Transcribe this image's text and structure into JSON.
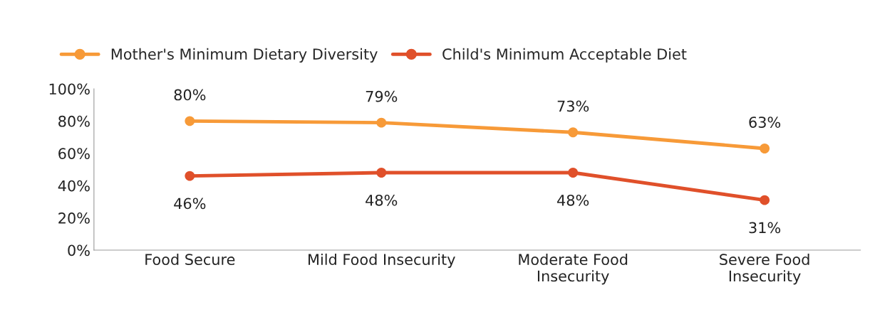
{
  "chart_data": {
    "type": "line",
    "categories": [
      "Food Secure",
      "Mild Food Insecurity",
      "Moderate Food Insecurity",
      "Severe Food Insecurity"
    ],
    "series": [
      {
        "name": "Mother's Minimum Dietary Diversity",
        "color": "#f79a38",
        "values": [
          80,
          79,
          73,
          63
        ],
        "value_labels": [
          "80%",
          "79%",
          "73%",
          "63%"
        ]
      },
      {
        "name": "Child's Minimum Acceptable Diet",
        "color": "#e0502a",
        "values": [
          46,
          48,
          48,
          31
        ],
        "value_labels": [
          "46%",
          "48%",
          "48%",
          "31%"
        ]
      }
    ],
    "ylim": [
      0,
      100
    ],
    "yticks": [
      {
        "value": 0,
        "label": "0%"
      },
      {
        "value": 20,
        "label": "20%"
      },
      {
        "value": 40,
        "label": "40%"
      },
      {
        "value": 60,
        "label": "60%"
      },
      {
        "value": 80,
        "label": "80%"
      },
      {
        "value": 100,
        "label": "100%"
      }
    ],
    "grid": false,
    "legend": "top left",
    "marker": "circle",
    "line_style": "solid"
  }
}
